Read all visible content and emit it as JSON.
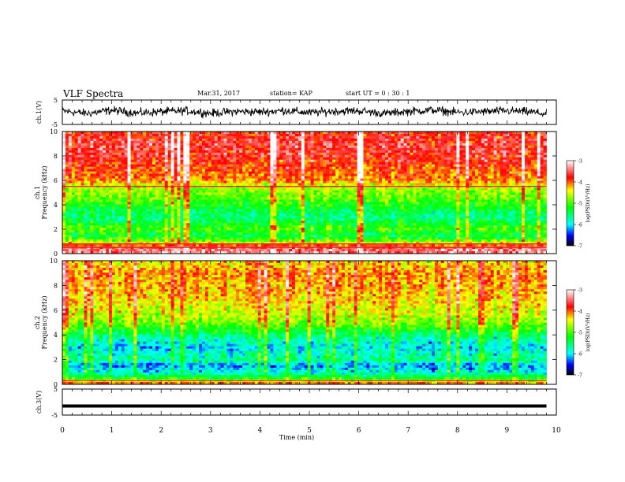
{
  "header": {
    "title": "VLF Spectra",
    "date": "Mar.31, 2017",
    "station": "station= KAP",
    "start_time": "start UT =  0 : 30 : 1"
  },
  "chart_data": [
    {
      "type": "line",
      "panel": "ch1-waveform",
      "ylabel": "ch.1(V)",
      "ylim": [
        -5,
        5
      ],
      "yticks": [
        "5",
        "-5"
      ],
      "xlim": [
        0,
        10
      ],
      "series": [
        {
          "values_desc": "",
          "x": [
            0,
            0.5,
            1,
            1.5,
            2,
            2.5,
            3,
            3.5,
            4,
            4.5,
            5,
            5.5,
            6,
            6.5,
            7,
            7.5,
            8,
            8.5,
            9,
            9.5,
            9.8
          ],
          "y": [
            0.5,
            -0.5,
            0.8,
            -0.3,
            0.2,
            0.6,
            -0.4,
            0.3,
            0.1,
            0.7,
            -0.2,
            0.4,
            0.6,
            -0.5,
            0.3,
            0.9,
            -0.1,
            0.2,
            0.6,
            0.1,
            -0.8
          ]
        }
      ]
    },
    {
      "type": "heatmap",
      "panel": "ch1-spectrogram",
      "ylabel_top": "ch.1",
      "ylabel": "Frequency (kHz)",
      "ylim": [
        0,
        10
      ],
      "yticks": [
        "0",
        "2",
        "4",
        "6",
        "8",
        "10"
      ],
      "xlim": [
        0,
        10
      ],
      "colorbar": {
        "label": "log(PSD)(V²/Hz)",
        "range": [
          -7,
          -3
        ],
        "ticks": [
          "-3",
          "-4",
          "-5",
          "-6",
          "-7"
        ]
      },
      "profile_khz": [
        0,
        0.5,
        1,
        1.5,
        2,
        2.5,
        3,
        3.5,
        4,
        4.5,
        5,
        5.5,
        6,
        7,
        8,
        9,
        10
      ],
      "profile_log_psd": [
        -3.3,
        -3.5,
        -4.8,
        -5.4,
        -5.0,
        -5.3,
        -5.6,
        -5.4,
        -5.2,
        -4.9,
        -4.8,
        -4.6,
        -4.1,
        -3.9,
        -3.7,
        -3.6,
        -3.8
      ],
      "lines_khz": [
        5.5,
        0.5,
        0.8
      ]
    },
    {
      "type": "heatmap",
      "panel": "ch2-spectrogram",
      "ylabel_top": "ch.2",
      "ylabel": "Frequency (kHz)",
      "ylim": [
        0,
        10
      ],
      "yticks": [
        "0",
        "2",
        "4",
        "6",
        "8",
        "10"
      ],
      "xlim": [
        0,
        10
      ],
      "colorbar": {
        "label": "log(PSD)(V²/Hz)",
        "range": [
          -7,
          -3
        ],
        "ticks": [
          "-3",
          "-4",
          "-5",
          "-6",
          "-7"
        ]
      },
      "profile_khz": [
        0,
        0.5,
        1,
        1.5,
        2,
        2.5,
        3,
        3.5,
        4,
        5,
        6,
        7,
        8,
        9,
        10
      ],
      "profile_log_psd": [
        -3.8,
        -5.2,
        -5.9,
        -6.2,
        -5.6,
        -5.8,
        -6.0,
        -5.8,
        -5.5,
        -4.8,
        -4.5,
        -4.3,
        -4.2,
        -4.1,
        -4.4
      ],
      "lines_khz": [
        0.3
      ]
    },
    {
      "type": "line",
      "panel": "ch3-waveform",
      "ylabel": "ch.3(V)",
      "ylim": [
        -5,
        5
      ],
      "yticks": [
        "5",
        "-5"
      ],
      "xlim": [
        0,
        10
      ],
      "xlabel": "Time (min)",
      "xticks": [
        "0",
        "1",
        "2",
        "3",
        "4",
        "5",
        "6",
        "7",
        "8",
        "9",
        "10"
      ],
      "series": [
        {
          "values_desc": "",
          "x": [
            0,
            9.8
          ],
          "y": [
            -1.5,
            -1.5
          ]
        }
      ]
    }
  ]
}
